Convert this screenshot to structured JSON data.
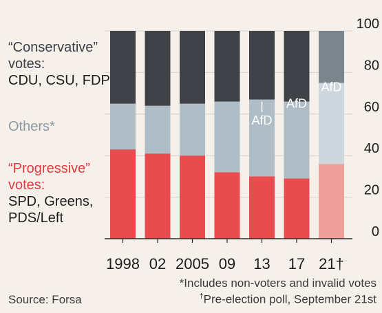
{
  "legend": {
    "conservative_title": "“Conservative” votes:",
    "conservative_parties": "CDU, CSU, FDP",
    "others_label": "Others*",
    "progressive_title": "“Progressive” votes:",
    "progressive_parties_1": "SPD, Greens,",
    "progressive_parties_2": "PDS/Left"
  },
  "footnotes": {
    "note1": "*Includes non-voters and invalid votes",
    "note2_mark": "†",
    "note2": "Pre-election poll, September 21st",
    "source": "Source: Forsa"
  },
  "colors": {
    "conservative": "#3f4347",
    "others": "#aebdc6",
    "progressive": "#e84c4f",
    "poll_conservative": "#7b858c",
    "poll_others": "#cdd7dd",
    "poll_progressive": "#f0a09a",
    "afd_label": "#ffffff"
  },
  "chart_data": {
    "type": "bar",
    "stacked": true,
    "categories": [
      "1998",
      "02",
      "2005",
      "09",
      "13",
      "17",
      "21†"
    ],
    "series": [
      {
        "key": "progressive",
        "values": [
          43,
          41,
          40,
          32,
          30,
          29,
          36
        ]
      },
      {
        "key": "others",
        "values": [
          22,
          23,
          25,
          34,
          37,
          37,
          39
        ]
      },
      {
        "key": "conservative",
        "values": [
          35,
          36,
          35,
          34,
          33,
          34,
          25
        ]
      }
    ],
    "annotations": [
      {
        "category": "13",
        "text": "AfD",
        "value": 55
      },
      {
        "category": "17",
        "text": "AfD",
        "value": 63
      },
      {
        "category": "21†",
        "text": "AfD",
        "value": 71
      }
    ],
    "ylim": [
      0,
      100
    ],
    "yticks": [
      0,
      20,
      40,
      60,
      80,
      100
    ],
    "yaxis_side": "right",
    "grid": true
  }
}
